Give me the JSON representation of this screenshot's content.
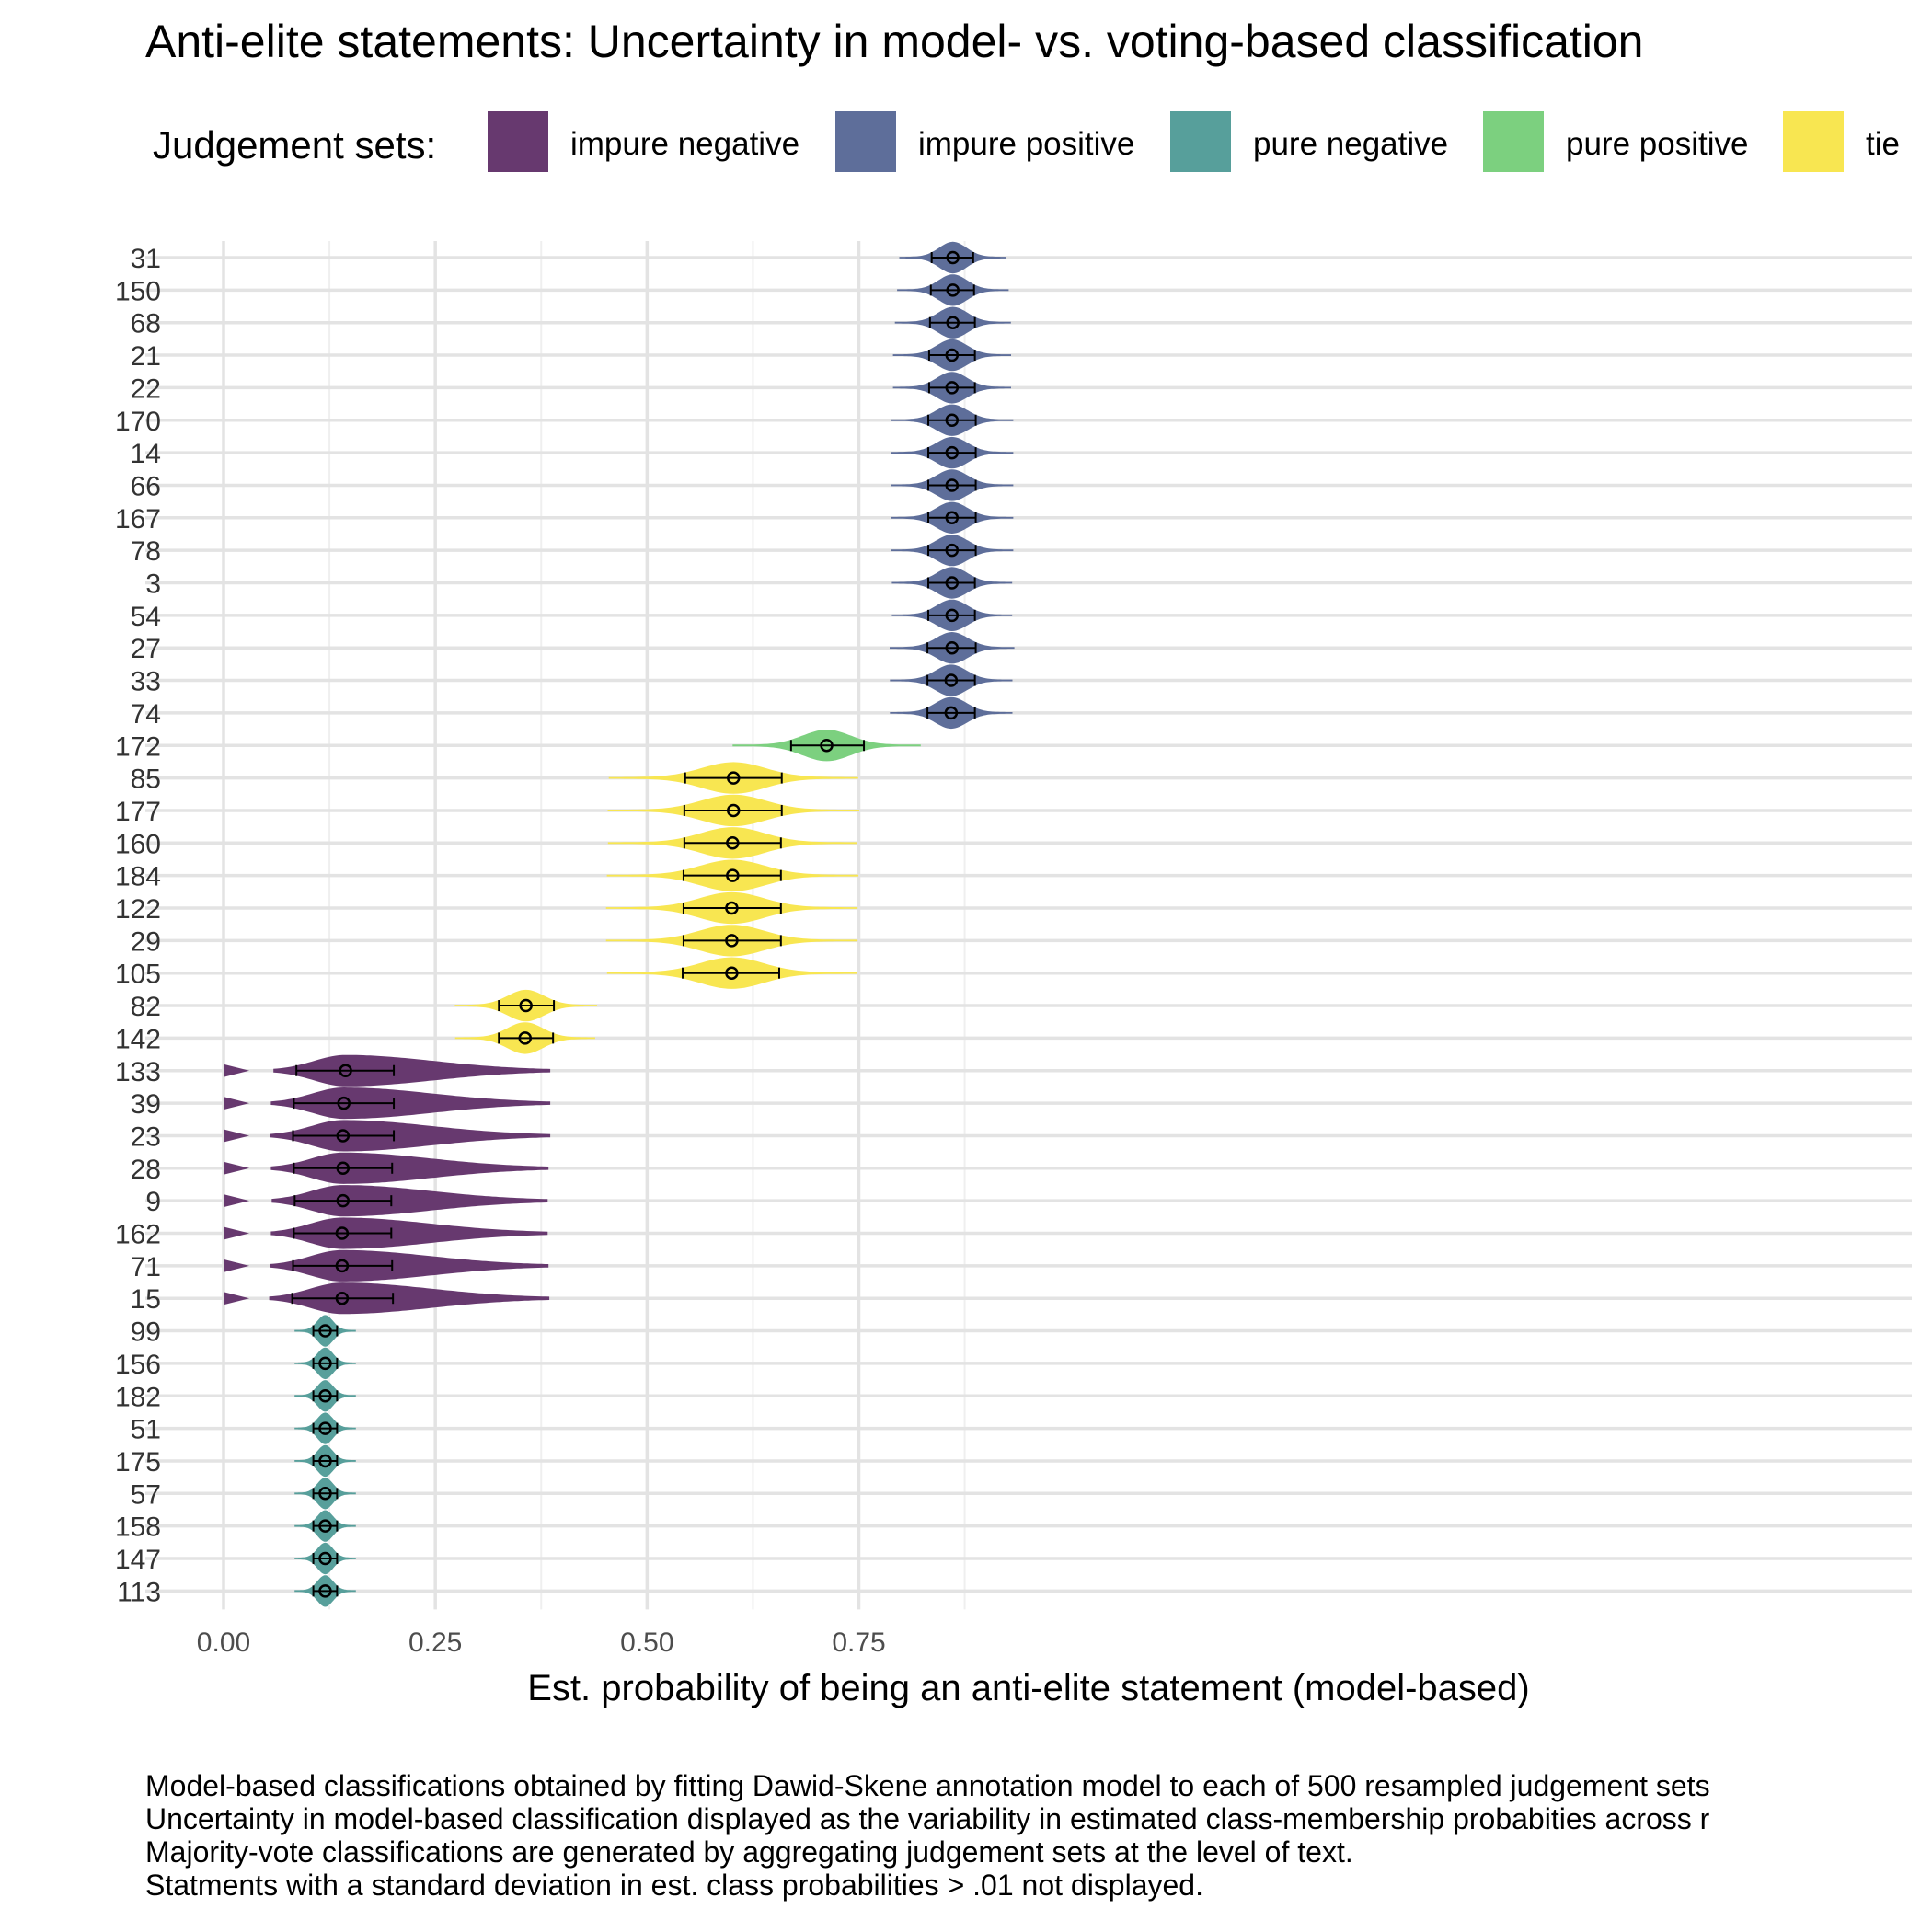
{
  "chart_data": {
    "type": "violin",
    "title": "Anti-elite statements: Uncertainty in model- vs. voting-based classification",
    "xlabel": "Est. probability of being an anti-elite statement (model-based)",
    "ylabel": "",
    "xlim": [
      -0.09,
      1.0
    ],
    "x_ticks": [
      "0.00",
      "0.25",
      "0.50",
      "0.75"
    ],
    "x_tick_values": [
      0,
      0.25,
      0.5,
      0.75
    ],
    "grid": true,
    "legend": {
      "title": "Judgement sets:",
      "position": "top",
      "entries": [
        {
          "label": "impure negative",
          "color": "#67396f"
        },
        {
          "label": "impure positive",
          "color": "#5e6e9a"
        },
        {
          "label": "pure negative",
          "color": "#579f9b"
        },
        {
          "label": "pure positive",
          "color": "#7cd07f"
        },
        {
          "label": "tie",
          "color": "#f8e651"
        }
      ]
    },
    "statements": [
      {
        "id": "31",
        "group": "impure positive",
        "mean": 0.861,
        "lo": 0.836,
        "hi": 0.885
      },
      {
        "id": "150",
        "group": "impure positive",
        "mean": 0.861,
        "lo": 0.835,
        "hi": 0.886
      },
      {
        "id": "68",
        "group": "impure positive",
        "mean": 0.861,
        "lo": 0.834,
        "hi": 0.887
      },
      {
        "id": "21",
        "group": "impure positive",
        "mean": 0.86,
        "lo": 0.833,
        "hi": 0.887
      },
      {
        "id": "22",
        "group": "impure positive",
        "mean": 0.86,
        "lo": 0.833,
        "hi": 0.887
      },
      {
        "id": "170",
        "group": "impure positive",
        "mean": 0.86,
        "lo": 0.832,
        "hi": 0.888
      },
      {
        "id": "14",
        "group": "impure positive",
        "mean": 0.86,
        "lo": 0.832,
        "hi": 0.888
      },
      {
        "id": "66",
        "group": "impure positive",
        "mean": 0.86,
        "lo": 0.832,
        "hi": 0.888
      },
      {
        "id": "167",
        "group": "impure positive",
        "mean": 0.86,
        "lo": 0.832,
        "hi": 0.888
      },
      {
        "id": "78",
        "group": "impure positive",
        "mean": 0.86,
        "lo": 0.832,
        "hi": 0.888
      },
      {
        "id": "3",
        "group": "impure positive",
        "mean": 0.86,
        "lo": 0.832,
        "hi": 0.887
      },
      {
        "id": "54",
        "group": "impure positive",
        "mean": 0.86,
        "lo": 0.832,
        "hi": 0.887
      },
      {
        "id": "27",
        "group": "impure positive",
        "mean": 0.86,
        "lo": 0.831,
        "hi": 0.888
      },
      {
        "id": "33",
        "group": "impure positive",
        "mean": 0.859,
        "lo": 0.831,
        "hi": 0.887
      },
      {
        "id": "74",
        "group": "impure positive",
        "mean": 0.859,
        "lo": 0.831,
        "hi": 0.887
      },
      {
        "id": "172",
        "group": "pure positive",
        "mean": 0.712,
        "lo": 0.67,
        "hi": 0.756
      },
      {
        "id": "85",
        "group": "tie",
        "mean": 0.602,
        "lo": 0.545,
        "hi": 0.659
      },
      {
        "id": "177",
        "group": "tie",
        "mean": 0.602,
        "lo": 0.544,
        "hi": 0.659
      },
      {
        "id": "160",
        "group": "tie",
        "mean": 0.601,
        "lo": 0.544,
        "hi": 0.658
      },
      {
        "id": "184",
        "group": "tie",
        "mean": 0.601,
        "lo": 0.543,
        "hi": 0.658
      },
      {
        "id": "122",
        "group": "tie",
        "mean": 0.6,
        "lo": 0.543,
        "hi": 0.658
      },
      {
        "id": "29",
        "group": "tie",
        "mean": 0.6,
        "lo": 0.543,
        "hi": 0.658
      },
      {
        "id": "105",
        "group": "tie",
        "mean": 0.6,
        "lo": 0.542,
        "hi": 0.656
      },
      {
        "id": "82",
        "group": "tie",
        "mean": 0.357,
        "lo": 0.325,
        "hi": 0.39
      },
      {
        "id": "142",
        "group": "tie",
        "mean": 0.356,
        "lo": 0.325,
        "hi": 0.389
      },
      {
        "id": "133",
        "group": "impure negative",
        "mean": 0.144,
        "lo": 0.086,
        "hi": 0.201
      },
      {
        "id": "39",
        "group": "impure negative",
        "mean": 0.142,
        "lo": 0.083,
        "hi": 0.201
      },
      {
        "id": "23",
        "group": "impure negative",
        "mean": 0.141,
        "lo": 0.082,
        "hi": 0.201
      },
      {
        "id": "28",
        "group": "impure negative",
        "mean": 0.141,
        "lo": 0.083,
        "hi": 0.199
      },
      {
        "id": "9",
        "group": "impure negative",
        "mean": 0.141,
        "lo": 0.084,
        "hi": 0.198
      },
      {
        "id": "162",
        "group": "impure negative",
        "mean": 0.14,
        "lo": 0.083,
        "hi": 0.198
      },
      {
        "id": "71",
        "group": "impure negative",
        "mean": 0.14,
        "lo": 0.082,
        "hi": 0.199
      },
      {
        "id": "15",
        "group": "impure negative",
        "mean": 0.14,
        "lo": 0.081,
        "hi": 0.2
      },
      {
        "id": "99",
        "group": "pure negative",
        "mean": 0.12,
        "lo": 0.106,
        "hi": 0.134
      },
      {
        "id": "156",
        "group": "pure negative",
        "mean": 0.12,
        "lo": 0.106,
        "hi": 0.134
      },
      {
        "id": "182",
        "group": "pure negative",
        "mean": 0.12,
        "lo": 0.106,
        "hi": 0.134
      },
      {
        "id": "51",
        "group": "pure negative",
        "mean": 0.12,
        "lo": 0.106,
        "hi": 0.134
      },
      {
        "id": "175",
        "group": "pure negative",
        "mean": 0.12,
        "lo": 0.106,
        "hi": 0.134
      },
      {
        "id": "57",
        "group": "pure negative",
        "mean": 0.12,
        "lo": 0.106,
        "hi": 0.134
      },
      {
        "id": "158",
        "group": "pure negative",
        "mean": 0.12,
        "lo": 0.106,
        "hi": 0.134
      },
      {
        "id": "147",
        "group": "pure negative",
        "mean": 0.12,
        "lo": 0.106,
        "hi": 0.134
      },
      {
        "id": "113",
        "group": "pure negative",
        "mean": 0.12,
        "lo": 0.106,
        "hi": 0.134
      }
    ],
    "caption": [
      "Model-based classifications obtained by fitting Dawid-Skene annotation model to each of 500 resampled judgement sets",
      "Uncertainty in model-based classification displayed as the variability in estimated class-membership probabities across r",
      "Majority-vote classifications are generated by aggregating judgement sets at the level of text.",
      "Statments with a standard deviation in est. class probabilities > .01 not displayed."
    ]
  }
}
